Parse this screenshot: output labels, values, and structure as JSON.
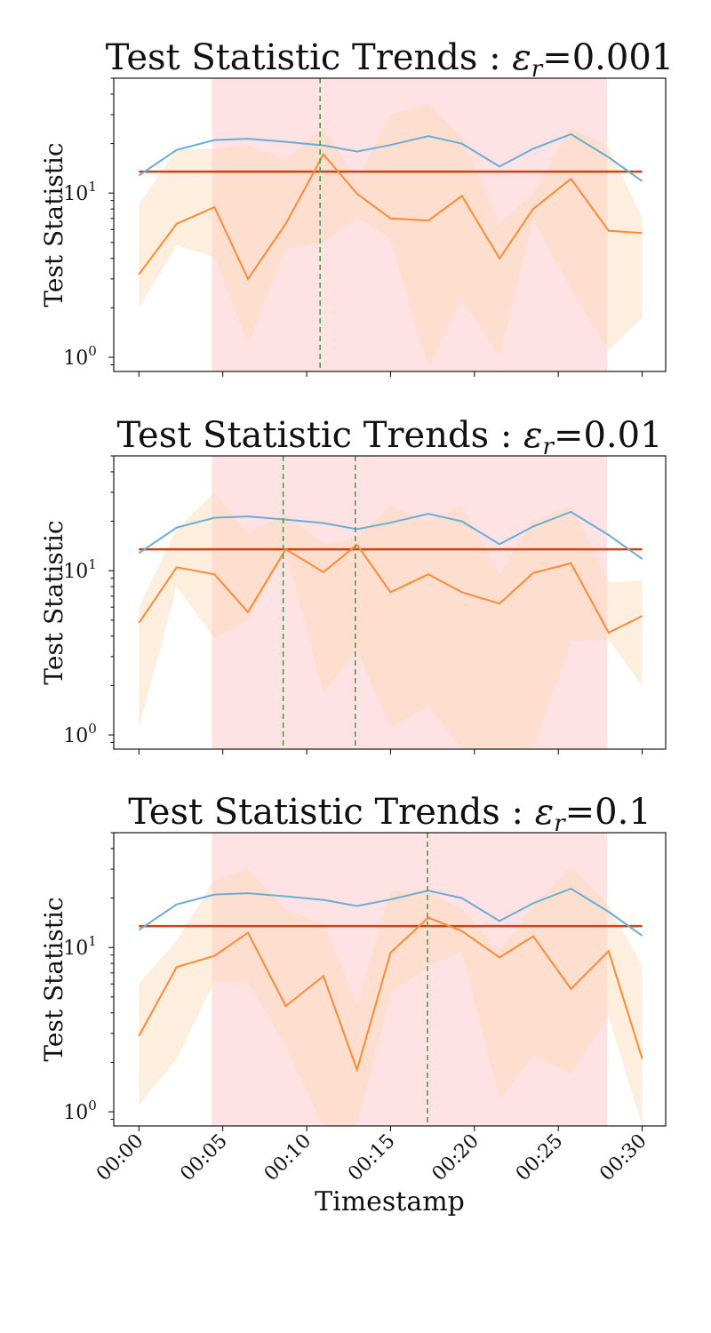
{
  "figure": {
    "xlabel": "Timestamp",
    "xticks": [
      "00:00",
      "00:05",
      "00:10",
      "00:15",
      "00:20",
      "00:25",
      "00:30"
    ],
    "colors": {
      "blue": "#6aaed6",
      "orange": "#ff8a33",
      "orange_band": "#fdd9b5",
      "threshold": "#cc4411",
      "red_region": "#ffb3b8",
      "vline": "#559955"
    }
  },
  "chart_data": [
    {
      "type": "line",
      "title": "Test Statistic Trends : ",
      "title_math_symbol": "ε",
      "title_math_sub": "r",
      "title_value": "=0.001",
      "ylabel": "Test Statistic",
      "yscale": "log",
      "ylim": [
        0.82,
        50
      ],
      "yticks": [
        {
          "base": "10",
          "exp": "0",
          "value": 1
        },
        {
          "base": "10",
          "exp": "1",
          "value": 10
        }
      ],
      "xlim_minutes": [
        -1.5,
        31.4
      ],
      "x_minutes": [
        0,
        2.25,
        4.5,
        6.5,
        8.75,
        11,
        13,
        15,
        17.25,
        19.25,
        21.5,
        23.5,
        25.75,
        28,
        30
      ],
      "series": [
        {
          "role": "blue",
          "values": [
            12.8,
            18.3,
            21,
            21.4,
            20.5,
            19.5,
            17.9,
            19.6,
            22.2,
            20,
            14.5,
            18.6,
            22.8,
            16.5,
            11.8
          ]
        },
        {
          "role": "orange",
          "values": [
            3.2,
            6.5,
            8.2,
            3.0,
            6.5,
            17.2,
            9.9,
            7.0,
            6.8,
            9.6,
            4.0,
            8.0,
            12.2,
            5.9,
            5.7
          ]
        }
      ],
      "band": {
        "lower": [
          2.0,
          4.8,
          4.1,
          1.2,
          4.6,
          5.0,
          7.1,
          5.3,
          0.85,
          2.3,
          1.0,
          6.9,
          2.6,
          1.1,
          1.75
        ],
        "upper": [
          8.5,
          18.5,
          18.5,
          19.5,
          16.0,
          25.0,
          12.0,
          30.0,
          35.0,
          22.0,
          6.5,
          10.0,
          25.0,
          19.0,
          7.0
        ]
      },
      "threshold": 13.5,
      "threshold_span_minutes": [
        0,
        30
      ],
      "red_region_minutes": [
        4.35,
        27.9
      ],
      "vlines_minutes": [
        10.8
      ]
    },
    {
      "type": "line",
      "title": "Test Statistic Trends : ",
      "title_math_symbol": "ε",
      "title_math_sub": "r",
      "title_value": "=0.01",
      "ylabel": "Test Statistic",
      "yscale": "log",
      "ylim": [
        0.82,
        50
      ],
      "yticks": [
        {
          "base": "10",
          "exp": "0",
          "value": 1
        },
        {
          "base": "10",
          "exp": "1",
          "value": 10
        }
      ],
      "xlim_minutes": [
        -1.5,
        31.4
      ],
      "x_minutes": [
        0,
        2.25,
        4.5,
        6.5,
        8.75,
        11,
        13,
        15,
        17.25,
        19.25,
        21.5,
        23.5,
        25.75,
        28,
        30
      ],
      "series": [
        {
          "role": "blue",
          "values": [
            12.8,
            18.3,
            21,
            21.4,
            20.5,
            19.5,
            17.9,
            19.6,
            22.2,
            20,
            14.5,
            18.6,
            22.8,
            16.5,
            11.8
          ]
        },
        {
          "role": "orange",
          "values": [
            4.8,
            10.5,
            9.5,
            5.6,
            13.5,
            9.8,
            14.4,
            7.4,
            9.5,
            7.4,
            6.3,
            9.7,
            11.1,
            4.2,
            5.3
          ]
        }
      ],
      "band": {
        "lower": [
          1.1,
          8.0,
          3.9,
          5.0,
          13.0,
          1.8,
          3.3,
          1.1,
          1.5,
          0.82,
          0.82,
          0.82,
          3.75,
          3.8,
          2.0
        ],
        "upper": [
          6.0,
          18.0,
          30.0,
          17.0,
          22.0,
          14.5,
          16.0,
          25.0,
          20.0,
          25.0,
          9.5,
          20.0,
          25.0,
          8.5,
          8.7
        ]
      },
      "threshold": 13.5,
      "threshold_span_minutes": [
        0,
        30
      ],
      "red_region_minutes": [
        4.35,
        27.9
      ],
      "vlines_minutes": [
        8.6,
        12.9
      ]
    },
    {
      "type": "line",
      "title": "Test Statistic Trends : ",
      "title_math_symbol": "ε",
      "title_math_sub": "r",
      "title_value": "=0.1",
      "ylabel": "Test Statistic",
      "yscale": "log",
      "ylim": [
        0.82,
        50
      ],
      "yticks": [
        {
          "base": "10",
          "exp": "0",
          "value": 1
        },
        {
          "base": "10",
          "exp": "1",
          "value": 10
        }
      ],
      "xlim_minutes": [
        -1.5,
        31.4
      ],
      "x_minutes": [
        0,
        2.25,
        4.5,
        6.5,
        8.75,
        11,
        13,
        15,
        17.25,
        19.25,
        21.5,
        23.5,
        25.75,
        28,
        30
      ],
      "series": [
        {
          "role": "blue",
          "values": [
            12.8,
            18.3,
            21,
            21.4,
            20.5,
            19.5,
            17.9,
            19.6,
            22.2,
            20,
            14.5,
            18.6,
            22.8,
            16.5,
            11.8
          ]
        },
        {
          "role": "orange",
          "values": [
            2.9,
            7.6,
            8.9,
            12.3,
            4.4,
            6.7,
            1.8,
            9.3,
            15.2,
            12.6,
            8.7,
            11.7,
            5.6,
            9.5,
            2.1
          ]
        }
      ],
      "band": {
        "lower": [
          1.1,
          2.1,
          6.2,
          6.2,
          2.5,
          0.82,
          0.82,
          5.2,
          7.7,
          9.5,
          1.2,
          2.2,
          1.7,
          3.8,
          0.82
        ],
        "upper": [
          6.0,
          11.0,
          26.0,
          30.0,
          17.0,
          14.0,
          4.5,
          22.0,
          22.0,
          17.0,
          9.5,
          18.0,
          31.0,
          18.0,
          7.7
        ]
      },
      "threshold": 13.5,
      "threshold_span_minutes": [
        0,
        30
      ],
      "red_region_minutes": [
        4.35,
        27.9
      ],
      "vlines_minutes": [
        17.2
      ]
    }
  ]
}
